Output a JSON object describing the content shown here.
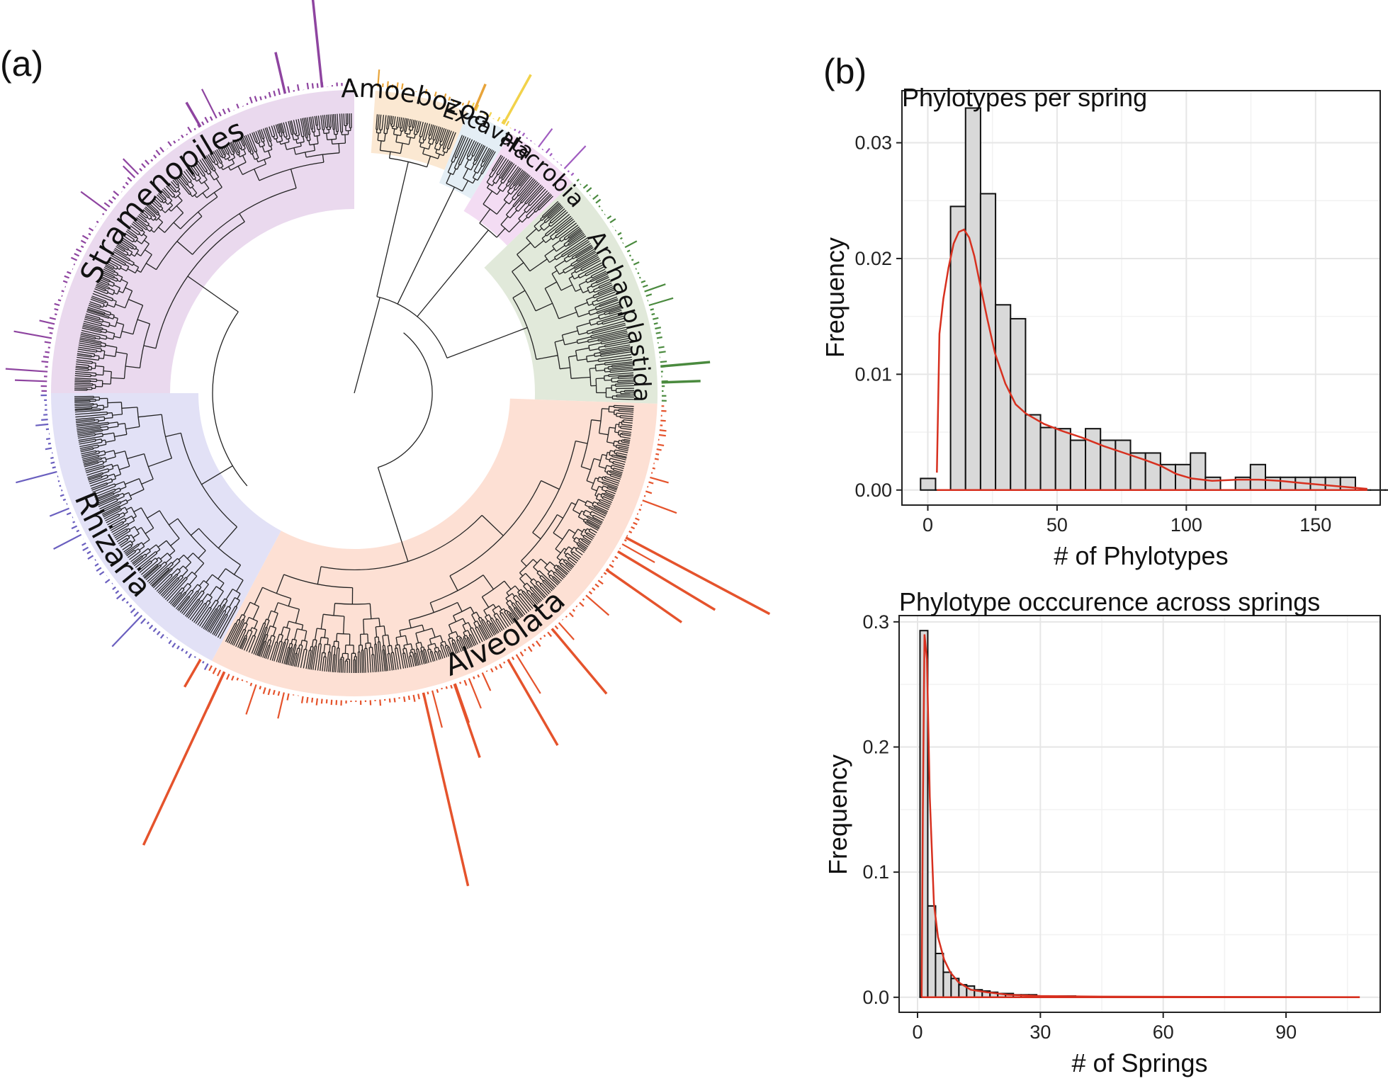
{
  "panels": {
    "a": "(a)",
    "b": "(b)"
  },
  "tree": {
    "clades": [
      {
        "name": "Stramenopiles",
        "color": "#ead9ee",
        "bar": "#8e44a0"
      },
      {
        "name": "Amoebozoa",
        "color": "#fbe8d2",
        "bar": "#e8a43a"
      },
      {
        "name": "Excavata",
        "color": "#e4eef5",
        "bar": "#f2d24a"
      },
      {
        "name": "Hacrobia",
        "color": "#f3dcf3",
        "bar": "#a05cc0"
      },
      {
        "name": "Archaeplastida",
        "color": "#e1e9da",
        "bar": "#4a8a3e"
      },
      {
        "name": "Alveolata",
        "color": "#fde0d4",
        "bar": "#e5532c"
      },
      {
        "name": "Rhizaria",
        "color": "#e2e1f6",
        "bar": "#6a5fbf"
      }
    ]
  },
  "chart_data": [
    {
      "type": "bar",
      "title": "Phylotypes per spring",
      "xlabel": "# of Phylotypes",
      "ylabel": "Frequency",
      "xlim": [
        -10,
        175
      ],
      "ylim": [
        -0.0013,
        0.0345
      ],
      "xticks": [
        0,
        50,
        100,
        150
      ],
      "xtick_labels": [
        "0",
        "50",
        "100",
        "150"
      ],
      "yticks": [
        0.0,
        0.01,
        0.02,
        0.03
      ],
      "ytick_labels": [
        "0.00",
        "0.01",
        "0.02",
        "0.03"
      ],
      "bin_width": 5.8,
      "bin_start": -2.8,
      "values": [
        0.001,
        0.0,
        0.0245,
        0.033,
        0.0256,
        0.016,
        0.0148,
        0.0065,
        0.0054,
        0.0053,
        0.0043,
        0.0053,
        0.0043,
        0.0043,
        0.0032,
        0.0032,
        0.0022,
        0.0022,
        0.0032,
        0.0011,
        0.0,
        0.0011,
        0.0022,
        0.0011,
        0.0011,
        0.0011,
        0.0011,
        0.0011,
        0.0011,
        0.0,
        0.0,
        0.0,
        0.0011
      ],
      "density_curve": [
        [
          3.5,
          0.0015
        ],
        [
          4.5,
          0.0135
        ],
        [
          6,
          0.0165
        ],
        [
          8,
          0.0192
        ],
        [
          10,
          0.0213
        ],
        [
          12,
          0.0223
        ],
        [
          14,
          0.0225
        ],
        [
          16,
          0.0218
        ],
        [
          18,
          0.0202
        ],
        [
          20,
          0.018
        ],
        [
          23,
          0.0148
        ],
        [
          26,
          0.0118
        ],
        [
          30,
          0.0092
        ],
        [
          34,
          0.0074
        ],
        [
          38,
          0.0066
        ],
        [
          45,
          0.0057
        ],
        [
          52,
          0.0051
        ],
        [
          60,
          0.0045
        ],
        [
          68,
          0.0038
        ],
        [
          76,
          0.0032
        ],
        [
          84,
          0.0026
        ],
        [
          90,
          0.0021
        ],
        [
          96,
          0.0014
        ],
        [
          102,
          0.001
        ],
        [
          110,
          0.0008
        ],
        [
          120,
          0.0009
        ],
        [
          128,
          0.0009
        ],
        [
          136,
          0.0008
        ],
        [
          145,
          0.0006
        ],
        [
          155,
          0.0004
        ],
        [
          165,
          0.0002
        ],
        [
          170,
          0.0001
        ]
      ],
      "density_color": "#d7301f"
    },
    {
      "type": "bar",
      "title": "Phylotype occcurence across springs",
      "xlabel": "# of Springs",
      "ylabel": "Frequency",
      "xlim": [
        -4.5,
        113
      ],
      "ylim": [
        -0.012,
        0.305
      ],
      "xticks": [
        0,
        30,
        60,
        90
      ],
      "xtick_labels": [
        "0",
        "30",
        "60",
        "90"
      ],
      "yticks": [
        0.0,
        0.1,
        0.2,
        0.3
      ],
      "ytick_labels": [
        "0.0",
        "0.1",
        "0.2",
        "0.3"
      ],
      "bin_width": 1.9,
      "bin_start": 0.6,
      "values": [
        0.293,
        0.073,
        0.035,
        0.02,
        0.015,
        0.01,
        0.009,
        0.006,
        0.005,
        0.004,
        0.003,
        0.003,
        0.002,
        0.002,
        0.002,
        0.001,
        0.001,
        0.001,
        0.001,
        0.001
      ],
      "density_curve": [
        [
          1.0,
          0.0
        ],
        [
          1.3,
          0.15
        ],
        [
          1.7,
          0.29
        ],
        [
          2.3,
          0.27
        ],
        [
          3.0,
          0.16
        ],
        [
          4.0,
          0.075
        ],
        [
          5.0,
          0.048
        ],
        [
          6.5,
          0.03
        ],
        [
          8,
          0.02
        ],
        [
          10,
          0.012
        ],
        [
          13,
          0.006
        ],
        [
          17,
          0.004
        ],
        [
          22,
          0.002
        ],
        [
          30,
          0.001
        ],
        [
          45,
          0.0005
        ],
        [
          70,
          0.0003
        ],
        [
          108,
          0.0001
        ]
      ],
      "density_color": "#d7301f"
    }
  ]
}
